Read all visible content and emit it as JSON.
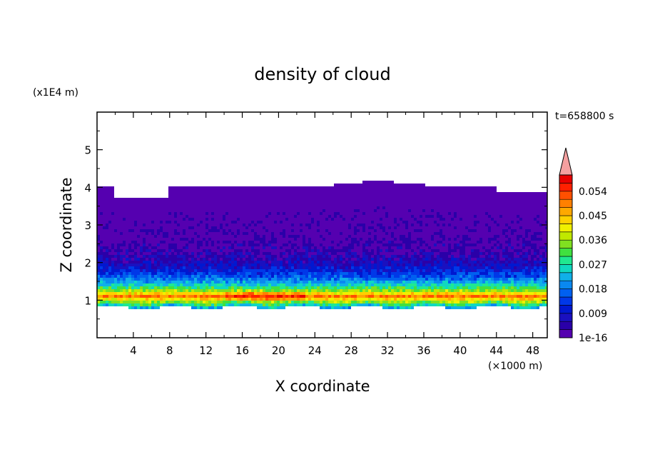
{
  "chart_data": {
    "type": "heatmap",
    "title": "density of cloud",
    "xlabel": "X coordinate",
    "ylabel": "Z coordinate",
    "x_unit": "(×1000 m)",
    "y_unit": "(x1E4 m)",
    "time_label": "t=658800 s",
    "xlim": [
      0,
      49.6
    ],
    "ylim": [
      0,
      6
    ],
    "x_ticks": [
      4,
      8,
      12,
      16,
      20,
      24,
      28,
      32,
      36,
      40,
      44,
      48
    ],
    "y_ticks": [
      1,
      2,
      3,
      4,
      5
    ],
    "colorbar": {
      "tick_values": [
        0.054,
        0.045,
        0.036,
        0.027,
        0.018,
        0.009,
        1e-16
      ],
      "tick_labels": [
        "0.054",
        "0.045",
        "0.036",
        "0.027",
        "0.018",
        "0.009",
        "1e-16"
      ],
      "levels": [
        1e-16,
        0.003,
        0.006,
        0.009,
        0.012,
        0.015,
        0.018,
        0.021,
        0.024,
        0.027,
        0.03,
        0.033,
        0.036,
        0.039,
        0.042,
        0.045,
        0.048,
        0.051,
        0.054,
        0.057
      ],
      "colors": [
        "#5500b0",
        "#2a00a8",
        "#1a10c0",
        "#0018d0",
        "#0038e8",
        "#0060f0",
        "#0a88f0",
        "#10b0e8",
        "#10d8c0",
        "#20e890",
        "#40e040",
        "#80e020",
        "#c0e800",
        "#f0f000",
        "#ffd000",
        "#ffa800",
        "#ff8000",
        "#ff5000",
        "#ff2000",
        "#e80000"
      ],
      "extend_color": "#f4a0a0"
    },
    "cloud_layer": {
      "base_z": 0.8,
      "top_z": 4.0,
      "max_density_z": 1.1,
      "max_density_x_range": [
        14,
        23
      ],
      "max_density_value": 0.057
    }
  }
}
